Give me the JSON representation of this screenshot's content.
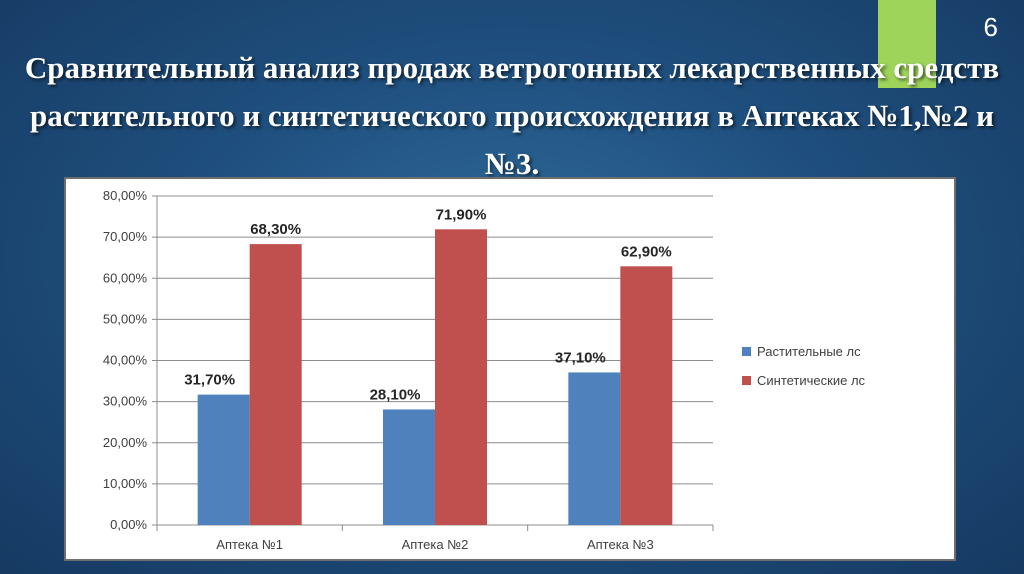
{
  "slide": {
    "number": "6",
    "title": "Сравнительный анализ продаж ветрогонных лекарственных средств растительного и синтетического происхождения в Аптеках №1,№2 и №3.",
    "accent_color": "#9ed45a"
  },
  "chart_data": {
    "type": "bar",
    "title": "",
    "xlabel": "",
    "ylabel": "",
    "categories": [
      "Аптека №1",
      "Аптека №2",
      "Аптека №3"
    ],
    "series": [
      {
        "name": "Растительные лс",
        "values": [
          31.7,
          28.1,
          37.1
        ],
        "labels": [
          "31,70%",
          "28,10%",
          "37,10%"
        ],
        "color": "#4f81bd"
      },
      {
        "name": "Синтетические лс",
        "values": [
          68.3,
          71.9,
          62.9
        ],
        "labels": [
          "68,30%",
          "71,90%",
          "62,90%"
        ],
        "color": "#c0504d"
      }
    ],
    "ylim": [
      0,
      80
    ],
    "yticks": [
      0,
      10,
      20,
      30,
      40,
      50,
      60,
      70,
      80
    ],
    "ytick_labels": [
      "0,00%",
      "10,00%",
      "20,00%",
      "30,00%",
      "40,00%",
      "50,00%",
      "60,00%",
      "70,00%",
      "80,00%"
    ],
    "grid": true,
    "legend": "right"
  }
}
